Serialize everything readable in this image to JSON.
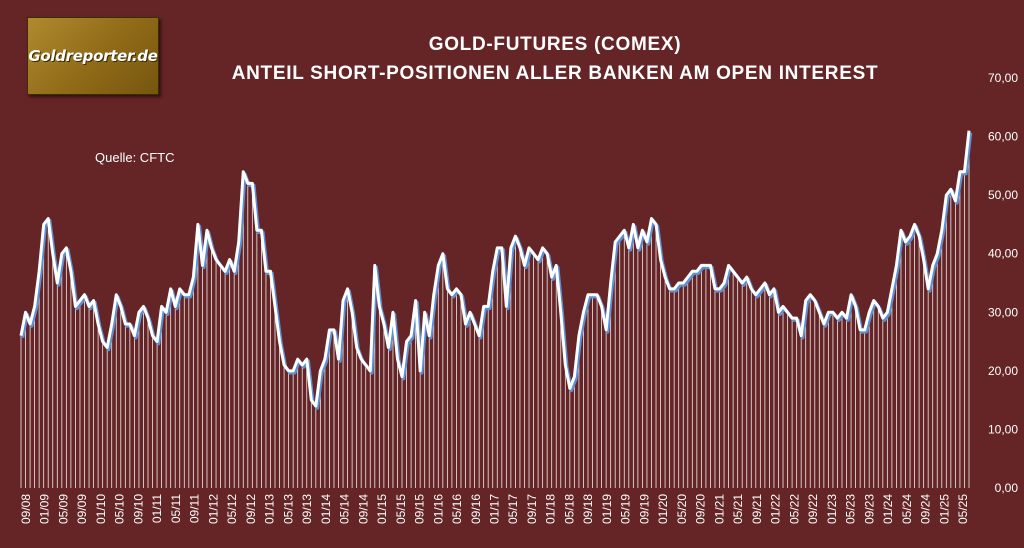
{
  "logo": {
    "text": "Goldreporter.de"
  },
  "header": {
    "title_line1": "GOLD-FUTURES (COMEX)",
    "title_line2": "ANTEIL SHORT-POSITIONEN ALLER BANKEN AM OPEN INTEREST"
  },
  "source": "Quelle: CFTC",
  "colors": {
    "background": "#652526",
    "line": "#ffffff",
    "line_shadow": "#5b8fd6",
    "bars": "#ffffff"
  },
  "chart_data": {
    "type": "line",
    "title": "GOLD-FUTURES (COMEX) ANTEIL SHORT-POSITIONEN ALLER BANKEN AM OPEN INTEREST",
    "xlabel": "",
    "ylabel": "",
    "ylim": [
      0,
      70
    ],
    "y_axis_position": "right",
    "yticks": [
      "0,00",
      "10,00",
      "20,00",
      "30,00",
      "40,00",
      "50,00",
      "60,00",
      "70,00"
    ],
    "xticks": [
      "09/08",
      "01/09",
      "05/09",
      "09/09",
      "01/10",
      "05/10",
      "09/10",
      "01/11",
      "05/11",
      "09/11",
      "01/12",
      "05/12",
      "09/12",
      "01/13",
      "05/13",
      "09/13",
      "01/14",
      "05/14",
      "09/14",
      "01/15",
      "05/15",
      "09/15",
      "01/16",
      "05/16",
      "09/16",
      "01/17",
      "05/17",
      "09/17",
      "01/18",
      "05/18",
      "09/18",
      "01/19",
      "05/19",
      "09/19",
      "01/20",
      "05/20",
      "09/20",
      "01/21",
      "05/21",
      "09/21",
      "01/22",
      "05/22",
      "09/22",
      "01/23",
      "05/23",
      "09/23",
      "01/24",
      "05/24",
      "09/24",
      "01/25",
      "05/25"
    ],
    "series": [
      {
        "values": [
          26.0,
          30.0,
          28.0,
          31.0,
          37.0,
          45.0,
          46.0,
          40.0,
          35.0,
          40.0,
          41.0,
          37.0,
          31.0,
          32.0,
          33.0,
          31.0,
          32.0,
          28.0,
          25.0,
          24.0,
          28.0,
          33.0,
          31.0,
          28.0,
          28.0,
          26.0,
          30.0,
          31.0,
          29.0,
          26.0,
          25.0,
          31.0,
          30.0,
          34.0,
          31.0,
          34.0,
          33.0,
          33.0,
          36.0,
          45.0,
          38.0,
          44.0,
          41.0,
          39.0,
          38.0,
          37.0,
          39.0,
          37.0,
          42.0,
          54.0,
          52.0,
          52.0,
          44.0,
          44.0,
          37.0,
          37.0,
          31.0,
          25.0,
          21.0,
          20.0,
          20.0,
          22.0,
          21.0,
          22.0,
          15.0,
          14.0,
          20.0,
          22.0,
          27.0,
          27.0,
          22.0,
          32.0,
          34.0,
          30.0,
          24.0,
          22.0,
          21.0,
          20.0,
          38.0,
          31.0,
          28.0,
          24.0,
          30.0,
          22.0,
          19.0,
          25.0,
          26.0,
          32.0,
          20.0,
          30.0,
          26.0,
          33.0,
          38.0,
          40.0,
          34.0,
          33.0,
          34.0,
          33.0,
          28.0,
          30.0,
          28.0,
          26.0,
          31.0,
          31.0,
          37.0,
          41.0,
          41.0,
          31.0,
          41.0,
          43.0,
          41.0,
          38.0,
          41.0,
          40.0,
          39.0,
          41.0,
          40.0,
          36.0,
          38.0,
          30.0,
          21.0,
          17.0,
          19.0,
          26.0,
          30.0,
          33.0,
          33.0,
          33.0,
          31.0,
          27.0,
          35.0,
          42.0,
          43.0,
          44.0,
          41.0,
          45.0,
          41.0,
          44.0,
          42.0,
          46.0,
          45.0,
          39.0,
          36.0,
          34.0,
          34.0,
          35.0,
          35.0,
          36.0,
          37.0,
          37.0,
          38.0,
          38.0,
          38.0,
          34.0,
          34.0,
          35.0,
          38.0,
          37.0,
          36.0,
          35.0,
          36.0,
          34.0,
          33.0,
          34.0,
          35.0,
          33.0,
          34.0,
          30.0,
          31.0,
          30.0,
          29.0,
          29.0,
          26.0,
          32.0,
          33.0,
          32.0,
          30.0,
          28.0,
          30.0,
          30.0,
          29.0,
          30.0,
          29.0,
          33.0,
          31.0,
          27.0,
          27.0,
          30.0,
          32.0,
          31.0,
          29.0,
          30.0,
          34.0,
          38.0,
          44.0,
          42.0,
          43.0,
          45.0,
          43.0,
          39.0,
          34.0,
          38.0,
          40.0,
          44.0,
          50.0,
          51.0,
          49.0,
          54.0,
          54.0,
          61.0
        ]
      }
    ],
    "grid": false,
    "legend": "none"
  }
}
